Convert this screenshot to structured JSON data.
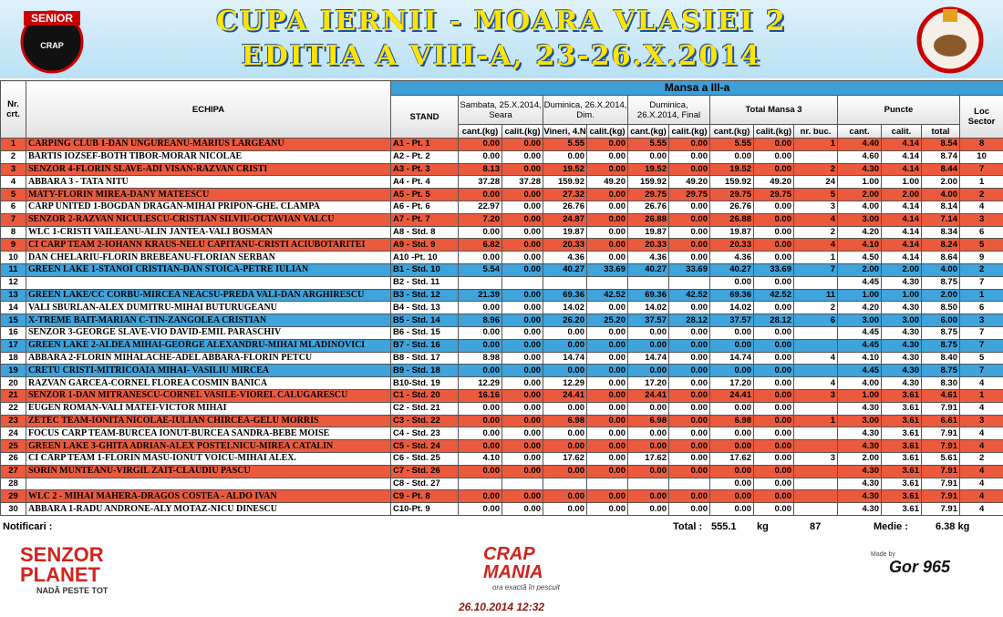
{
  "header": {
    "title": "CUPA IERNII - MOARA VLASIEI 2",
    "subtitle": "EDITIA  A VIII-A, 23-26.X.2014",
    "logo_left": [
      "SENIOR",
      "CRAP"
    ]
  },
  "table": {
    "columns": {
      "nr": "Nr. crt.",
      "echipa": "ECHIPA",
      "mansa": "Mansa a III-a",
      "stand": "STAND",
      "s1": "Sambata, 25.X.2014, Seara",
      "s2": "Duminica, 26.X.2014, Dim.",
      "s3": "Duminica, 26.X.2014, Final",
      "total": "Total Mansa 3",
      "puncte": "Puncte",
      "loc": "Loc Sector",
      "sub": [
        "cant.(kg)",
        "calit.(kg)",
        "Vineri, 4.N",
        "calit.(kg)",
        "cant.(kg)",
        "calit.(kg)",
        "cant.(kg)",
        "calit.(kg)",
        "nr. buc.",
        "cant.",
        "calit.",
        "total"
      ]
    },
    "rows": [
      [
        "1",
        "CARPING CLUB 1-DAN UNGUREANU-MARIUS LARGEANU",
        "A1 - Pt. 1",
        "0.00",
        "0.00",
        "5.55",
        "0.00",
        "5.55",
        "0.00",
        "5.55",
        "0.00",
        "1",
        "4.40",
        "4.14",
        "8.54",
        "8"
      ],
      [
        "2",
        "BARTIS IOZSEF-BOTH TIBOR-MORAR NICOLAE",
        "A2 - Pt. 2",
        "0.00",
        "0.00",
        "0.00",
        "0.00",
        "0.00",
        "0.00",
        "0.00",
        "0.00",
        null,
        "4.60",
        "4.14",
        "8.74",
        "10"
      ],
      [
        "3",
        "SENZOR 4-FLORIN SLAVE-ADI VISAN-RAZVAN CRISTI",
        "A3 - Pt. 3",
        "8.13",
        "0.00",
        "19.52",
        "0.00",
        "19.52",
        "0.00",
        "19.52",
        "0.00",
        "2",
        "4.30",
        "4.14",
        "8.44",
        "7"
      ],
      [
        "4",
        "ABBARA 3 - TATA NITU",
        "A4 - Pt. 4",
        "37.28",
        "37.28",
        "159.92",
        "49.20",
        "159.92",
        "49.20",
        "159.92",
        "49.20",
        "24",
        "1.00",
        "1.00",
        "2.00",
        "1"
      ],
      [
        "5",
        "MATY-FLORIN MIREA-DANY MATEESCU",
        "A5 - Pt. 5",
        "0.00",
        "0.00",
        "27.32",
        "0.00",
        "29.75",
        "29.75",
        "29.75",
        "29.75",
        "5",
        "2.00",
        "2.00",
        "4.00",
        "2"
      ],
      [
        "6",
        "CARP UNITED 1-BOGDAN DRAGAN-MIHAI PRIPON-GHE. CLAMPA",
        "A6 - Pt. 6",
        "22.97",
        "0.00",
        "26.76",
        "0.00",
        "26.76",
        "0.00",
        "26.76",
        "0.00",
        "3",
        "4.00",
        "4.14",
        "8.14",
        "4"
      ],
      [
        "7",
        "SENZOR 2-RAZVAN NICULESCU-CRISTIAN SILVIU-OCTAVIAN VALCU",
        "A7 - Pt. 7",
        "7.20",
        "0.00",
        "24.87",
        "0.00",
        "26.88",
        "0.00",
        "26.88",
        "0.00",
        "4",
        "3.00",
        "4.14",
        "7.14",
        "3"
      ],
      [
        "8",
        "WLC 1-CRISTI VAILEANU-ALIN JANTEA-VALI BOSMAN",
        "A8 - Std. 8",
        "0.00",
        "0.00",
        "19.87",
        "0.00",
        "19.87",
        "0.00",
        "19.87",
        "0.00",
        "2",
        "4.20",
        "4.14",
        "8.34",
        "6"
      ],
      [
        "9",
        "CI CARP TEAM 2-IOHANN KRAUS-NELU CAPITANU-CRISTI ACIUBOTARITEI",
        "A9 - Std. 9",
        "6.82",
        "0.00",
        "20.33",
        "0.00",
        "20.33",
        "0.00",
        "20.33",
        "0.00",
        "4",
        "4.10",
        "4.14",
        "8.24",
        "5"
      ],
      [
        "10",
        "DAN CHELARIU-FLORIN BREBEANU-FLORIAN SERBAN",
        "A10 -Pt. 10",
        "0.00",
        "0.00",
        "4.36",
        "0.00",
        "4.36",
        "0.00",
        "4.36",
        "0.00",
        "1",
        "4.50",
        "4.14",
        "8.64",
        "9"
      ],
      [
        "11",
        "GREEN LAKE 1-STANOI CRISTIAN-DAN STOICA-PETRE IULIAN",
        "B1 - Std. 10",
        "5.54",
        "0.00",
        "40.27",
        "33.69",
        "40.27",
        "33.69",
        "40.27",
        "33.69",
        "7",
        "2.00",
        "2.00",
        "4.00",
        "2"
      ],
      [
        "12",
        null,
        "B2 - Std. 11",
        null,
        null,
        null,
        null,
        null,
        null,
        "0.00",
        "0.00",
        null,
        "4.45",
        "4.30",
        "8.75",
        "7"
      ],
      [
        "13",
        "GREEN LAKE/CC CORBU-MIRCEA NEACSU-PREDA VALI-DAN ARGHIRESCU",
        "B3 - Std. 12",
        "21.39",
        "0.00",
        "69.36",
        "42.52",
        "69.36",
        "42.52",
        "69.36",
        "42.52",
        "11",
        "1.00",
        "1.00",
        "2.00",
        "1"
      ],
      [
        "14",
        "VALI SBURLAN-ALEX DUMITRU-MIHAI BUTURUGEANU",
        "B4 - Std. 13",
        "0.00",
        "0.00",
        "14.02",
        "0.00",
        "14.02",
        "0.00",
        "14.02",
        "0.00",
        "2",
        "4.20",
        "4.30",
        "8.50",
        "6"
      ],
      [
        "15",
        "X-TREME BAIT-MARIAN C-TIN-ZANGOLEA CRISTIAN",
        "B5 - Std. 14",
        "8.96",
        "0.00",
        "26.20",
        "25.20",
        "37.57",
        "28.12",
        "37.57",
        "28.12",
        "6",
        "3.00",
        "3.00",
        "6.00",
        "3"
      ],
      [
        "16",
        "SENZOR 3-GEORGE SLAVE-VIO DAVID-EMIL PARASCHIV",
        "B6 - Std. 15",
        "0.00",
        "0.00",
        "0.00",
        "0.00",
        "0.00",
        "0.00",
        "0.00",
        "0.00",
        null,
        "4.45",
        "4.30",
        "8.75",
        "7"
      ],
      [
        "17",
        "GREEN LAKE 2-ALDEA MIHAI-GEORGE ALEXANDRU-MIHAI MLADINOVICI",
        "B7 - Std. 16",
        "0.00",
        "0.00",
        "0.00",
        "0.00",
        "0.00",
        "0.00",
        "0.00",
        "0.00",
        null,
        "4.45",
        "4.30",
        "8.75",
        "7"
      ],
      [
        "18",
        "ABBARA 2-FLORIN MIHALACHE-ADEL ABBARA-FLORIN PETCU",
        "B8 - Std. 17",
        "8.98",
        "0.00",
        "14.74",
        "0.00",
        "14.74",
        "0.00",
        "14.74",
        "0.00",
        "4",
        "4.10",
        "4.30",
        "8.40",
        "5"
      ],
      [
        "19",
        "CRETU CRISTI-MITRICOAIA MIHAI- VASILIU MIRCEA",
        "B9 - Std. 18",
        "0.00",
        "0.00",
        "0.00",
        "0.00",
        "0.00",
        "0.00",
        "0.00",
        "0.00",
        null,
        "4.45",
        "4.30",
        "8.75",
        "7"
      ],
      [
        "20",
        "RAZVAN GARCEA-CORNEL FLOREA COSMIN BANICA",
        "B10-Std. 19",
        "12.29",
        "0.00",
        "12.29",
        "0.00",
        "17.20",
        "0.00",
        "17.20",
        "0.00",
        "4",
        "4.00",
        "4.30",
        "8.30",
        "4"
      ],
      [
        "21",
        "SENZOR 1-DAN MITRANESCU-CORNEL VASILE-VIOREL CALUGARESCU",
        "C1 - Std. 20",
        "16.16",
        "0.00",
        "24.41",
        "0.00",
        "24.41",
        "0.00",
        "24.41",
        "0.00",
        "3",
        "1.00",
        "3.61",
        "4.61",
        "1"
      ],
      [
        "22",
        "EUGEN ROMAN-VALI MATEI-VICTOR MIHAI",
        "C2 - Std. 21",
        "0.00",
        "0.00",
        "0.00",
        "0.00",
        "0.00",
        "0.00",
        "0.00",
        "0.00",
        null,
        "4.30",
        "3.61",
        "7.91",
        "4"
      ],
      [
        "23",
        "ZETEC TEAM-IONITA NICOLAE-IULIAN CHIRCEA-GELU MORRIS",
        "C3 - Std. 22",
        "0.00",
        "0.00",
        "6.98",
        "0.00",
        "6.98",
        "0.00",
        "6.98",
        "0.00",
        "1",
        "3.00",
        "3.61",
        "6.61",
        "3"
      ],
      [
        "24",
        "FOCUS CARP TEAM-BURCEA IONUT-BURCEA SANDRA-BEBE MOISE",
        "C4 - Std. 23",
        "0.00",
        "0.00",
        "0.00",
        "0.00",
        "0.00",
        "0.00",
        "0.00",
        "0.00",
        null,
        "4.30",
        "3.61",
        "7.91",
        "4"
      ],
      [
        "25",
        "GREEN LAKE 3-GHITA ADRIAN-ALEX POSTELNICU-MIREA CATALIN",
        "C5 - Std. 24",
        "0.00",
        "0.00",
        "0.00",
        "0.00",
        "0.00",
        "0.00",
        "0.00",
        "0.00",
        null,
        "4.30",
        "3.61",
        "7.91",
        "4"
      ],
      [
        "26",
        "CI CARP TEAM 1-FLORIN MASU-IONUT VOICU-MIHAI ALEX.",
        "C6 - Std. 25",
        "4.10",
        "0.00",
        "17.62",
        "0.00",
        "17.62",
        "0.00",
        "17.62",
        "0.00",
        "3",
        "2.00",
        "3.61",
        "5.61",
        "2"
      ],
      [
        "27",
        "SORIN MUNTEANU-VIRGIL ZAIT-CLAUDIU PASCU",
        "C7 - Std. 26",
        "0.00",
        "0.00",
        "0.00",
        "0.00",
        "0.00",
        "0.00",
        "0.00",
        "0.00",
        null,
        "4.30",
        "3.61",
        "7.91",
        "4"
      ],
      [
        "28",
        null,
        "C8 - Std. 27",
        null,
        null,
        null,
        null,
        null,
        null,
        "0.00",
        "0.00",
        null,
        "4.30",
        "3.61",
        "7.91",
        "4"
      ],
      [
        "29",
        "WLC 2 - MIHAI MAHERA-DRAGOS COSTEA - ALDO IVAN",
        "C9 - Pt. 8",
        "0.00",
        "0.00",
        "0.00",
        "0.00",
        "0.00",
        "0.00",
        "0.00",
        "0.00",
        null,
        "4.30",
        "3.61",
        "7.91",
        "4"
      ],
      [
        "30",
        "ABBARA 1-RADU ANDRONE-ALY MOTAZ-NICU DINESCU",
        "C10-Pt. 9",
        "0.00",
        "0.00",
        "0.00",
        "0.00",
        "0.00",
        "0.00",
        "0.00",
        "0.00",
        null,
        "4.30",
        "3.61",
        "7.91",
        "4"
      ]
    ]
  },
  "footer": {
    "notificari": "Notificari :",
    "total_label": "Total :",
    "total_value": "555.1",
    "total_unit": "kg",
    "count": "87",
    "medie_label": "Medie :",
    "medie_value": "6.38 kg",
    "sponsors": {
      "senzor": "SENZOR PLANET",
      "senzor_tag": "NADĂ PESTE TOT",
      "crap": "CRAP MANIA",
      "crap_tag": "ora exactă în pescuit",
      "made_by": "Made by",
      "gor": "Gor 965"
    },
    "timestamp": "26.10.2014 12:32"
  }
}
